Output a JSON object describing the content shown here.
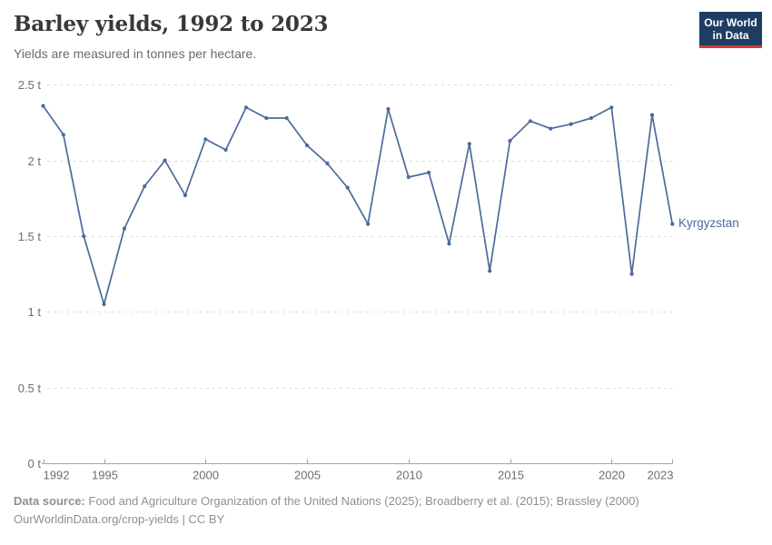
{
  "header": {
    "logo": {
      "line1": "Our World",
      "line2": "in Data"
    }
  },
  "chart_data": {
    "type": "line",
    "title": "Barley yields, 1992 to 2023",
    "subtitle": "Yields are measured in tonnes per hectare.",
    "unit": "tonnes per hectare",
    "x_range": [
      1992,
      2023
    ],
    "y_range": [
      0,
      2.5
    ],
    "grid": "horizontal-dashed",
    "legend_position": "end-of-line-label",
    "x": [
      1992,
      1993,
      1994,
      1995,
      1996,
      1997,
      1998,
      1999,
      2000,
      2001,
      2002,
      2003,
      2004,
      2005,
      2006,
      2007,
      2008,
      2009,
      2010,
      2011,
      2012,
      2013,
      2014,
      2015,
      2016,
      2017,
      2018,
      2019,
      2020,
      2021,
      2022,
      2023
    ],
    "series": [
      {
        "name": "Kyrgyzstan",
        "color": "#4C6A9C",
        "values": [
          2.36,
          2.17,
          1.5,
          1.05,
          1.55,
          1.83,
          2.0,
          1.77,
          2.14,
          2.07,
          2.35,
          2.28,
          2.28,
          2.1,
          1.98,
          1.82,
          1.58,
          2.34,
          1.89,
          1.92,
          1.45,
          2.11,
          1.27,
          2.13,
          2.26,
          2.21,
          2.24,
          2.28,
          2.35,
          1.25,
          2.3,
          1.58
        ]
      }
    ],
    "y_ticks": [
      {
        "value": 0,
        "label": "0 t"
      },
      {
        "value": 0.5,
        "label": "0.5 t"
      },
      {
        "value": 1,
        "label": "1 t"
      },
      {
        "value": 1.5,
        "label": "1.5 t"
      },
      {
        "value": 2,
        "label": "2 t"
      },
      {
        "value": 2.5,
        "label": "2.5 t"
      }
    ],
    "x_ticks": [
      {
        "value": 1992,
        "label": "1992",
        "anchor": "start"
      },
      {
        "value": 1995,
        "label": "1995",
        "anchor": "middle"
      },
      {
        "value": 2000,
        "label": "2000",
        "anchor": "middle"
      },
      {
        "value": 2005,
        "label": "2005",
        "anchor": "middle"
      },
      {
        "value": 2010,
        "label": "2010",
        "anchor": "middle"
      },
      {
        "value": 2015,
        "label": "2015",
        "anchor": "middle"
      },
      {
        "value": 2020,
        "label": "2020",
        "anchor": "middle"
      },
      {
        "value": 2023,
        "label": "2023",
        "anchor": "end"
      }
    ]
  },
  "colors": {
    "series": "#4C6A9C",
    "grid": "#dcdcdc",
    "axis": "#a5a5a5",
    "tick_text": "#6e6e6e",
    "title": "#383838",
    "subtitle": "#6b6b6b",
    "footer": "#8f8f8f",
    "logo_bg": "#1d3d63",
    "logo_red": "#d73c34"
  },
  "footer": {
    "source_label": "Data source:",
    "source_text": "Food and Agriculture Organization of the United Nations (2025); Broadberry et al. (2015); Brassley (2000)",
    "attribution": "OurWorldinData.org/crop-yields | CC BY"
  }
}
